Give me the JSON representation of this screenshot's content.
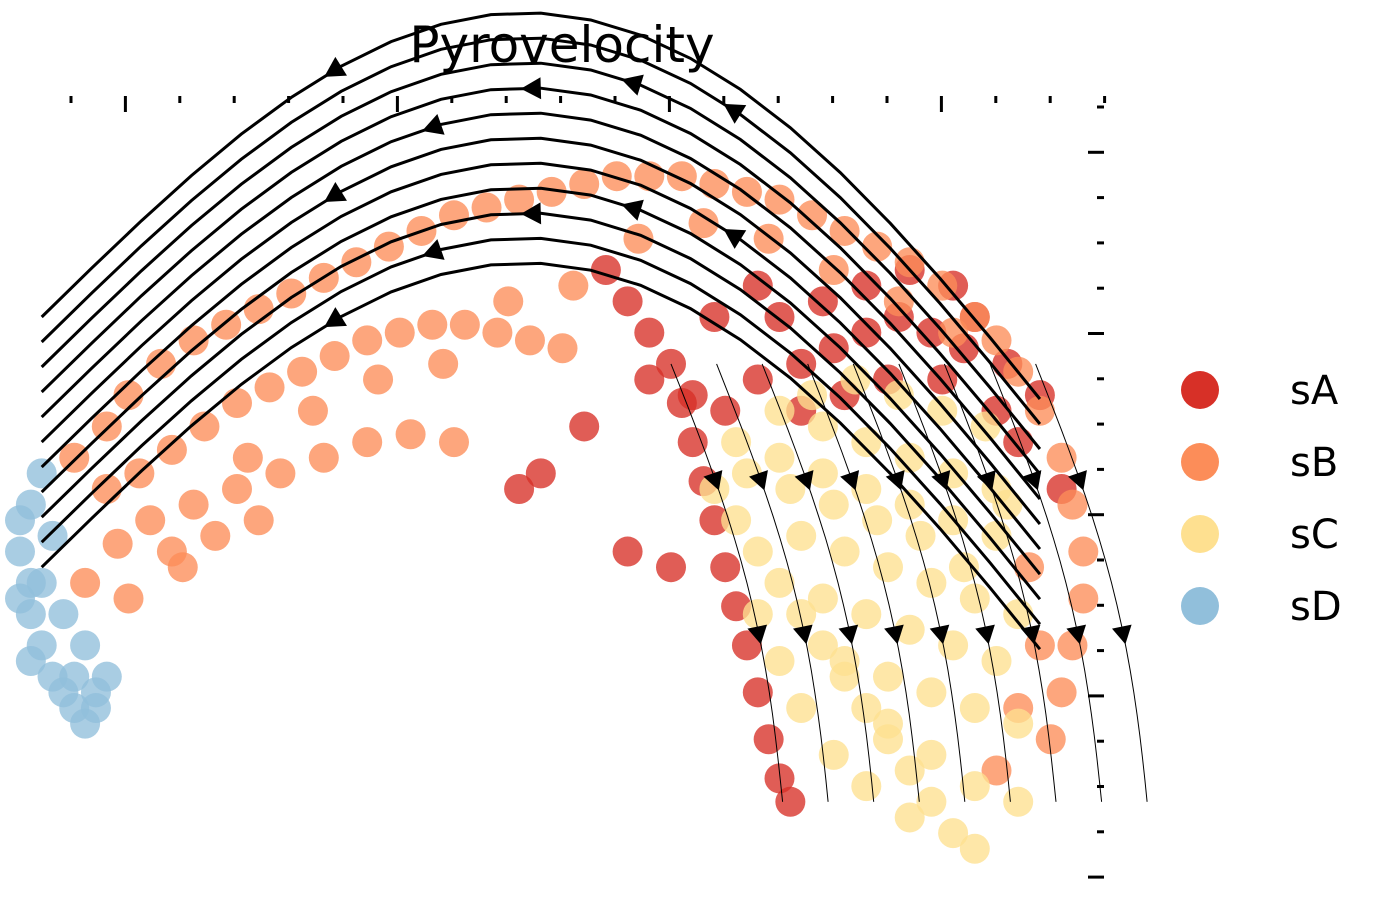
{
  "chart_data": {
    "type": "scatter",
    "title": "Pyrovelocity",
    "xlabel": "",
    "ylabel": "",
    "xlim": [
      0,
      100
    ],
    "ylim": [
      0,
      100
    ],
    "grid": false,
    "legend_position": "right",
    "overlay": "velocity streamlines with arrowheads",
    "series": [
      {
        "name": "sA",
        "color": "#d73027",
        "points": [
          [
            54,
            78
          ],
          [
            56,
            74
          ],
          [
            58,
            70
          ],
          [
            60,
            66
          ],
          [
            61,
            61
          ],
          [
            62,
            56
          ],
          [
            63,
            51
          ],
          [
            64,
            46
          ],
          [
            65,
            40
          ],
          [
            66,
            35
          ],
          [
            67,
            30
          ],
          [
            68,
            24
          ],
          [
            69,
            18
          ],
          [
            70,
            13
          ],
          [
            71,
            10
          ],
          [
            58,
            64
          ],
          [
            62,
            62
          ],
          [
            65,
            60
          ],
          [
            68,
            64
          ],
          [
            72,
            66
          ],
          [
            75,
            68
          ],
          [
            78,
            70
          ],
          [
            81,
            72
          ],
          [
            84,
            70
          ],
          [
            87,
            68
          ],
          [
            70,
            72
          ],
          [
            74,
            74
          ],
          [
            78,
            76
          ],
          [
            82,
            78
          ],
          [
            86,
            76
          ],
          [
            88,
            72
          ],
          [
            91,
            66
          ],
          [
            94,
            62
          ],
          [
            96,
            50
          ],
          [
            72,
            60
          ],
          [
            76,
            62
          ],
          [
            80,
            64
          ],
          [
            60,
            40
          ],
          [
            56,
            42
          ],
          [
            52,
            58
          ],
          [
            48,
            52
          ],
          [
            46,
            50
          ],
          [
            64,
            72
          ],
          [
            68,
            76
          ],
          [
            90,
            60
          ],
          [
            92,
            56
          ],
          [
            85,
            64
          ]
        ]
      },
      {
        "name": "sB",
        "color": "#fc8d59",
        "points": [
          [
            5,
            54
          ],
          [
            8,
            58
          ],
          [
            10,
            62
          ],
          [
            13,
            66
          ],
          [
            16,
            69
          ],
          [
            19,
            71
          ],
          [
            22,
            73
          ],
          [
            25,
            75
          ],
          [
            28,
            77
          ],
          [
            31,
            79
          ],
          [
            34,
            81
          ],
          [
            37,
            83
          ],
          [
            40,
            85
          ],
          [
            43,
            86
          ],
          [
            46,
            87
          ],
          [
            49,
            88
          ],
          [
            52,
            89
          ],
          [
            55,
            90
          ],
          [
            58,
            90
          ],
          [
            61,
            90
          ],
          [
            64,
            89
          ],
          [
            67,
            88
          ],
          [
            70,
            87
          ],
          [
            73,
            85
          ],
          [
            76,
            83
          ],
          [
            79,
            81
          ],
          [
            82,
            79
          ],
          [
            85,
            76
          ],
          [
            88,
            72
          ],
          [
            90,
            69
          ],
          [
            92,
            65
          ],
          [
            94,
            60
          ],
          [
            96,
            54
          ],
          [
            97,
            48
          ],
          [
            98,
            42
          ],
          [
            98,
            36
          ],
          [
            97,
            30
          ],
          [
            96,
            24
          ],
          [
            95,
            18
          ],
          [
            8,
            50
          ],
          [
            11,
            52
          ],
          [
            14,
            55
          ],
          [
            17,
            58
          ],
          [
            20,
            61
          ],
          [
            23,
            63
          ],
          [
            26,
            65
          ],
          [
            29,
            67
          ],
          [
            32,
            69
          ],
          [
            35,
            70
          ],
          [
            38,
            71
          ],
          [
            41,
            71
          ],
          [
            44,
            70
          ],
          [
            47,
            69
          ],
          [
            50,
            68
          ],
          [
            12,
            46
          ],
          [
            16,
            48
          ],
          [
            20,
            50
          ],
          [
            24,
            52
          ],
          [
            28,
            54
          ],
          [
            32,
            56
          ],
          [
            36,
            57
          ],
          [
            40,
            56
          ],
          [
            9,
            43
          ],
          [
            14,
            42
          ],
          [
            18,
            44
          ],
          [
            22,
            46
          ],
          [
            6,
            38
          ],
          [
            10,
            36
          ],
          [
            15,
            40
          ],
          [
            21,
            54
          ],
          [
            27,
            60
          ],
          [
            33,
            64
          ],
          [
            39,
            66
          ],
          [
            45,
            74
          ],
          [
            51,
            76
          ],
          [
            57,
            82
          ],
          [
            63,
            84
          ],
          [
            69,
            82
          ],
          [
            75,
            78
          ],
          [
            81,
            74
          ],
          [
            86,
            70
          ],
          [
            93,
            40
          ],
          [
            94,
            30
          ],
          [
            92,
            22
          ],
          [
            90,
            14
          ]
        ]
      },
      {
        "name": "sC",
        "color": "#fee090",
        "points": [
          [
            64,
            50
          ],
          [
            66,
            46
          ],
          [
            68,
            42
          ],
          [
            70,
            38
          ],
          [
            72,
            34
          ],
          [
            74,
            30
          ],
          [
            76,
            26
          ],
          [
            78,
            22
          ],
          [
            80,
            18
          ],
          [
            82,
            14
          ],
          [
            84,
            10
          ],
          [
            86,
            6
          ],
          [
            88,
            4
          ],
          [
            66,
            56
          ],
          [
            70,
            54
          ],
          [
            74,
            52
          ],
          [
            78,
            50
          ],
          [
            82,
            48
          ],
          [
            86,
            46
          ],
          [
            90,
            44
          ],
          [
            70,
            60
          ],
          [
            74,
            58
          ],
          [
            78,
            56
          ],
          [
            82,
            54
          ],
          [
            86,
            52
          ],
          [
            90,
            50
          ],
          [
            72,
            44
          ],
          [
            76,
            42
          ],
          [
            80,
            40
          ],
          [
            84,
            38
          ],
          [
            88,
            36
          ],
          [
            92,
            34
          ],
          [
            74,
            36
          ],
          [
            78,
            34
          ],
          [
            82,
            32
          ],
          [
            86,
            30
          ],
          [
            90,
            28
          ],
          [
            76,
            28
          ],
          [
            80,
            26
          ],
          [
            84,
            24
          ],
          [
            88,
            22
          ],
          [
            92,
            20
          ],
          [
            80,
            20
          ],
          [
            84,
            16
          ],
          [
            88,
            12
          ],
          [
            92,
            10
          ],
          [
            68,
            34
          ],
          [
            70,
            28
          ],
          [
            72,
            22
          ],
          [
            75,
            16
          ],
          [
            78,
            12
          ],
          [
            82,
            8
          ],
          [
            73,
            62
          ],
          [
            77,
            64
          ],
          [
            81,
            62
          ],
          [
            85,
            60
          ],
          [
            89,
            58
          ],
          [
            91,
            48
          ],
          [
            87,
            40
          ],
          [
            83,
            44
          ],
          [
            79,
            46
          ],
          [
            75,
            48
          ],
          [
            71,
            50
          ],
          [
            67,
            52
          ]
        ]
      },
      {
        "name": "sD",
        "color": "#91bfdb",
        "points": [
          [
            0,
            46
          ],
          [
            0,
            42
          ],
          [
            1,
            38
          ],
          [
            1,
            34
          ],
          [
            2,
            30
          ],
          [
            3,
            26
          ],
          [
            4,
            24
          ],
          [
            5,
            22
          ],
          [
            6,
            20
          ],
          [
            7,
            22
          ],
          [
            8,
            26
          ],
          [
            6,
            30
          ],
          [
            4,
            34
          ],
          [
            2,
            38
          ],
          [
            3,
            44
          ],
          [
            1,
            48
          ],
          [
            2,
            52
          ],
          [
            0,
            36
          ],
          [
            1,
            28
          ],
          [
            5,
            26
          ],
          [
            7,
            24
          ]
        ]
      }
    ]
  }
}
